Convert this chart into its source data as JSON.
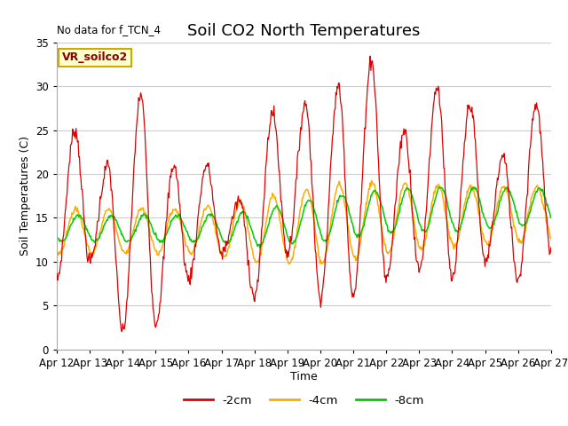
{
  "title": "Soil CO2 North Temperatures",
  "no_data_text": "No data for f_TCN_4",
  "station_label": "VR_soilco2",
  "ylabel": "Soil Temperatures (C)",
  "xlabel": "Time",
  "ylim": [
    0,
    35
  ],
  "yticks": [
    0,
    5,
    10,
    15,
    20,
    25,
    30,
    35
  ],
  "x_tick_days": [
    12,
    13,
    14,
    15,
    16,
    17,
    18,
    19,
    20,
    21,
    22,
    23,
    24,
    25,
    26,
    27
  ],
  "x_tick_labels": [
    "Apr 12",
    "Apr 13",
    "Apr 14",
    "Apr 15",
    "Apr 16",
    "Apr 17",
    "Apr 18",
    "Apr 19",
    "Apr 20",
    "Apr 21",
    "Apr 22",
    "Apr 23",
    "Apr 24",
    "Apr 25",
    "Apr 26",
    "Apr 27"
  ],
  "color_2cm": "#dd0000",
  "color_4cm": "#ffaa00",
  "color_8cm": "#00cc00",
  "legend_entries": [
    "-2cm",
    "-4cm",
    "-8cm"
  ],
  "grid_color": "#cccccc",
  "bg_color": "#ffffff",
  "title_fontsize": 13,
  "label_fontsize": 9,
  "tick_fontsize": 8.5
}
